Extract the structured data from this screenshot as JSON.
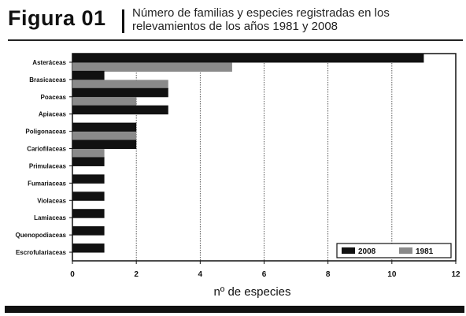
{
  "header": {
    "figure_label": "Figura 01",
    "title_line1": "Número de familias y especies registradas en los",
    "title_line2": "relevamientos de los años 1981 y 2008"
  },
  "colors": {
    "series_2008": "#111111",
    "series_1981": "#8a8a8a",
    "grid": "#333333"
  },
  "chart_data": {
    "type": "bar",
    "orientation": "horizontal",
    "categories": [
      "Asteráceas",
      "Brasicaceas",
      "Poaceas",
      "Apiaceas",
      "Poligonaceas",
      "Cariofilaceas",
      "Primulaceas",
      "Fumariaceas",
      "Violaceas",
      "Lamiaceas",
      "Quenopodiaceas",
      "Escrofulariaceas"
    ],
    "series": [
      {
        "name": "2008",
        "values": [
          11,
          1,
          3,
          3,
          2,
          2,
          1,
          1,
          1,
          1,
          1,
          1
        ]
      },
      {
        "name": "1981",
        "values": [
          5,
          3,
          2,
          0,
          2,
          1,
          0,
          0,
          0,
          0,
          0,
          0
        ]
      }
    ],
    "xlabel": "nº de especies",
    "xlim": [
      0,
      12
    ],
    "xticks": [
      0,
      2,
      4,
      6,
      8,
      10,
      12
    ],
    "grid": "vertical dotted",
    "legend_position": "bottom-right"
  }
}
